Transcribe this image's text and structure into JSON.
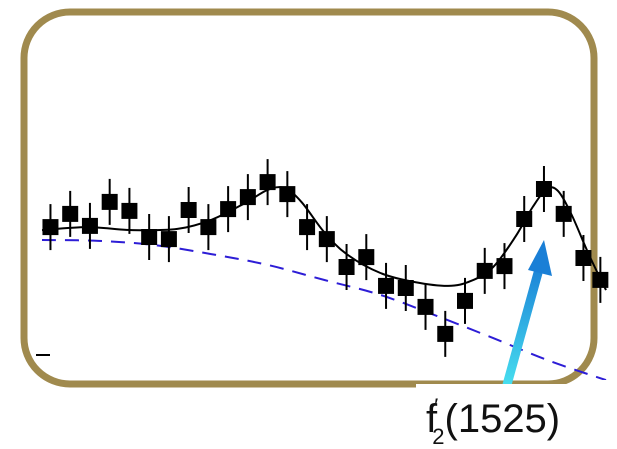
{
  "chart_data": {
    "type": "scatter",
    "title": "",
    "xlabel": "",
    "ylabel": "",
    "xlim": [
      0,
      100
    ],
    "ylim": [
      0,
      100
    ],
    "grid": false,
    "legend": "none",
    "frame_color": "#a08a4e",
    "marker_color": "#000000",
    "fit_color": "#000000",
    "background_color": "#2d1dd6",
    "arrow_color": "#1fb6e0",
    "points": [
      {
        "x": 1.5,
        "y": 54.3,
        "err": 5
      },
      {
        "x": 5.0,
        "y": 58.7,
        "err": 5
      },
      {
        "x": 8.5,
        "y": 54.7,
        "err": 5
      },
      {
        "x": 12.0,
        "y": 62.7,
        "err": 5
      },
      {
        "x": 15.5,
        "y": 59.7,
        "err": 5
      },
      {
        "x": 19.0,
        "y": 51.0,
        "err": 5
      },
      {
        "x": 22.5,
        "y": 50.3,
        "err": 5
      },
      {
        "x": 26.0,
        "y": 60.0,
        "err": 5
      },
      {
        "x": 29.5,
        "y": 54.3,
        "err": 5
      },
      {
        "x": 33.0,
        "y": 60.3,
        "err": 5
      },
      {
        "x": 36.5,
        "y": 64.3,
        "err": 5
      },
      {
        "x": 40.0,
        "y": 69.3,
        "err": 5
      },
      {
        "x": 43.5,
        "y": 65.3,
        "err": 5
      },
      {
        "x": 47.0,
        "y": 54.3,
        "err": 5
      },
      {
        "x": 50.5,
        "y": 50.3,
        "err": 5
      },
      {
        "x": 54.0,
        "y": 41.0,
        "err": 5
      },
      {
        "x": 57.5,
        "y": 44.3,
        "err": 5
      },
      {
        "x": 61.0,
        "y": 34.7,
        "err": 5
      },
      {
        "x": 64.5,
        "y": 34.0,
        "err": 5
      },
      {
        "x": 68.0,
        "y": 27.7,
        "err": 5
      },
      {
        "x": 71.5,
        "y": 18.7,
        "err": 5
      },
      {
        "x": 75.0,
        "y": 29.7,
        "err": 5
      },
      {
        "x": 78.5,
        "y": 39.7,
        "err": 5
      },
      {
        "x": 82.0,
        "y": 41.3,
        "err": 5
      },
      {
        "x": 85.5,
        "y": 57.0,
        "err": 5
      },
      {
        "x": 89.0,
        "y": 67.0,
        "err": 5
      },
      {
        "x": 92.5,
        "y": 58.7,
        "err": 5
      },
      {
        "x": 96.0,
        "y": 44.0,
        "err": 5
      },
      {
        "x": 99.0,
        "y": 36.7,
        "err": 5
      }
    ],
    "fit_curve": [
      [
        0,
        53.3
      ],
      [
        8,
        54.3
      ],
      [
        16,
        53.3
      ],
      [
        24,
        53.7
      ],
      [
        30,
        56.7
      ],
      [
        36,
        62.3
      ],
      [
        40,
        66.7
      ],
      [
        43,
        67.3
      ],
      [
        46,
        62.7
      ],
      [
        50,
        52.7
      ],
      [
        54,
        45.3
      ],
      [
        60,
        39.0
      ],
      [
        66,
        36.0
      ],
      [
        72,
        34.7
      ],
      [
        76,
        36.3
      ],
      [
        80,
        41.0
      ],
      [
        84,
        51.3
      ],
      [
        87,
        61.0
      ],
      [
        89.5,
        67.0
      ],
      [
        91.5,
        66.3
      ],
      [
        94,
        58.0
      ],
      [
        97,
        45.0
      ],
      [
        100,
        33.3
      ]
    ],
    "background_curve": [
      [
        0,
        50.0
      ],
      [
        10,
        49.7
      ],
      [
        20,
        48.3
      ],
      [
        30,
        45.3
      ],
      [
        40,
        41.7
      ],
      [
        50,
        36.7
      ],
      [
        60,
        31.7
      ],
      [
        70,
        24.7
      ],
      [
        80,
        17.3
      ],
      [
        90,
        9.7
      ],
      [
        100,
        3.3
      ]
    ],
    "annotations": [
      {
        "text_main": "f",
        "text_super": "′",
        "text_sub": "2",
        "text_tail": "(1525)"
      }
    ]
  }
}
